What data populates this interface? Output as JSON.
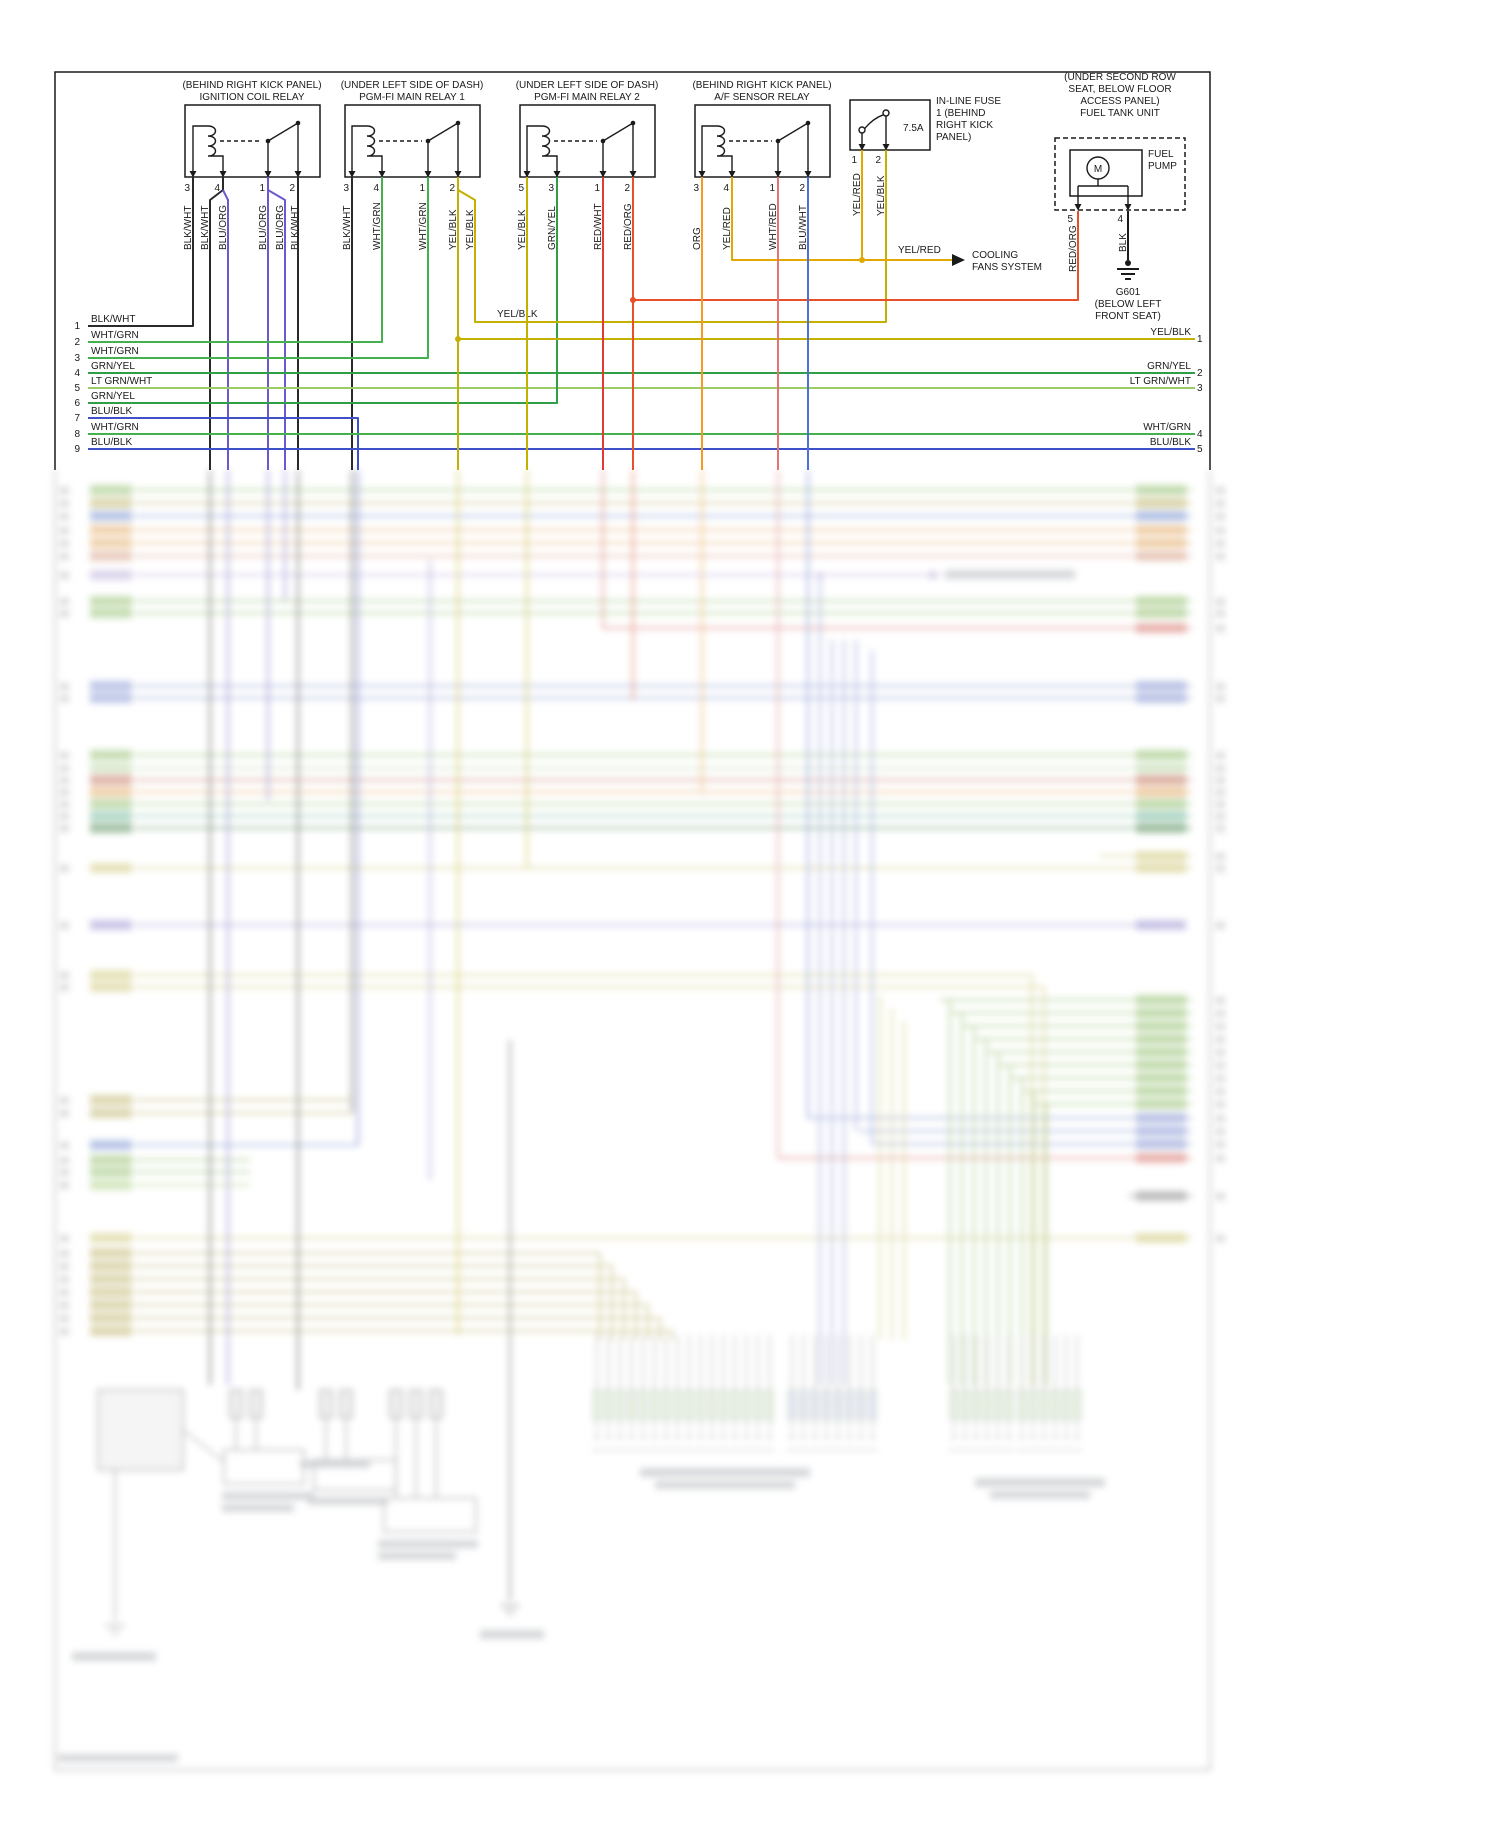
{
  "relays": [
    {
      "location": "(BEHIND RIGHT KICK PANEL)",
      "name": "IGNITION COIL RELAY",
      "pins": [
        "3",
        "4",
        "1",
        "2"
      ],
      "wire_labels": [
        "BLK/WHT",
        "BLK/WHT",
        "BLU/ORG",
        "BLU/ORG",
        "BLU/ORG",
        "BLK/WHT"
      ]
    },
    {
      "location": "(UNDER LEFT SIDE OF DASH)",
      "name": "PGM-FI MAIN RELAY 1",
      "pins": [
        "3",
        "4",
        "1",
        "2"
      ],
      "wire_labels": [
        "BLK/WHT",
        "WHT/GRN",
        "WHT/GRN",
        "YEL/BLK",
        "YEL/BLK"
      ]
    },
    {
      "location": "(UNDER LEFT SIDE OF DASH)",
      "name": "PGM-FI MAIN RELAY 2",
      "pins": [
        "5",
        "3",
        "1",
        "2"
      ],
      "wire_labels": [
        "YEL/BLK",
        "GRN/YEL",
        "RED/WHT",
        "RED/ORG"
      ]
    },
    {
      "location": "(BEHIND RIGHT KICK PANEL)",
      "name": "A/F SENSOR RELAY",
      "pins": [
        "3",
        "4",
        "1",
        "2"
      ],
      "wire_labels": [
        "ORG",
        "YEL/RED",
        "WHT/RED",
        "BLU/WHT"
      ]
    }
  ],
  "fuse": {
    "label_lines": [
      "IN-LINE FUSE",
      "1 (BEHIND",
      "RIGHT KICK",
      "PANEL)"
    ],
    "rating": "7.5A",
    "pins": [
      "1",
      "2"
    ],
    "wire_labels": [
      "YEL/RED",
      "YEL/BLK"
    ]
  },
  "fuel_tank": {
    "location_lines": [
      "(UNDER SECOND ROW",
      "SEAT, BELOW FLOOR",
      "ACCESS PANEL)"
    ],
    "name": "FUEL TANK UNIT",
    "pump_lines": [
      "FUEL",
      "PUMP"
    ],
    "motor": "M",
    "pins": [
      "5",
      "4"
    ],
    "wire_labels": [
      "RED/ORG",
      "BLK"
    ]
  },
  "ground": {
    "id": "G601",
    "location_lines": [
      "(BELOW LEFT",
      "FRONT SEAT)"
    ]
  },
  "cooling": {
    "wire": "YEL/RED",
    "dest_lines": [
      "COOLING",
      "FANS SYSTEM"
    ]
  },
  "mid_labels": {
    "yel_blk": "YEL/BLK"
  },
  "left_rows": [
    {
      "n": "1",
      "label": "BLK/WHT"
    },
    {
      "n": "2",
      "label": "WHT/GRN"
    },
    {
      "n": "3",
      "label": "WHT/GRN"
    },
    {
      "n": "4",
      "label": "GRN/YEL"
    },
    {
      "n": "5",
      "label": "LT GRN/WHT"
    },
    {
      "n": "6",
      "label": "GRN/YEL"
    },
    {
      "n": "7",
      "label": "BLU/BLK"
    },
    {
      "n": "8",
      "label": "WHT/GRN"
    },
    {
      "n": "9",
      "label": "BLU/BLK"
    }
  ],
  "right_rows": [
    {
      "n": "1",
      "label": "YEL/BLK"
    },
    {
      "n": "2",
      "label": "GRN/YEL"
    },
    {
      "n": "3",
      "label": "LT GRN/WHT"
    },
    {
      "n": "4",
      "label": "WHT/GRN"
    },
    {
      "n": "5",
      "label": "BLU/BLK"
    }
  ],
  "colors": {
    "blk_wht": "#2a2a2a",
    "wht_grn": "#44b04e",
    "grn_yel": "#2f9e44",
    "lt_grn_wht": "#9ccc65",
    "blu_blk": "#4050c8",
    "blu_wht": "#4f6fd8",
    "blu_org": "#6a5acd",
    "yel_blk": "#c4b000",
    "yel_red": "#e0a800",
    "red_wht": "#e53935",
    "wht_red": "#e57373",
    "red_org": "#e8502a",
    "org": "#f59a23",
    "blk": "#1a1a1a"
  }
}
